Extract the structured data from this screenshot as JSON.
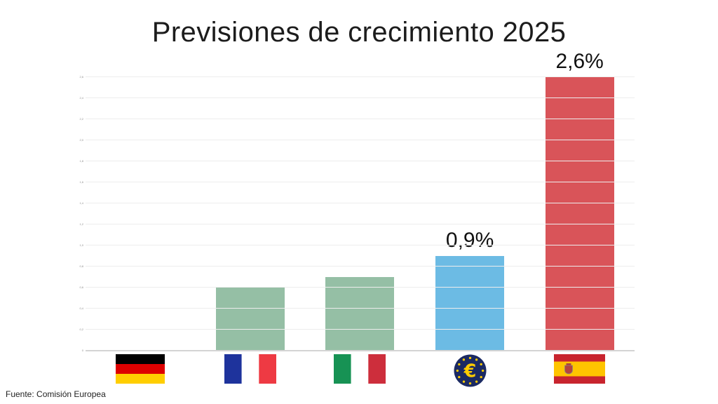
{
  "title": "Previsiones de crecimiento 2025",
  "source_note": "Fuente: Comisión Europea",
  "colors": {
    "green_bar": "#95bfa5",
    "blue_bar": "#6cbbe4",
    "red_bar": "#d95459",
    "gridline": "#ededed",
    "axis_line": "#d4d4d4",
    "title_text": "#1c1c1c",
    "euro_badge_navy": "#1b2a63",
    "euro_badge_yellow": "#ffcc00"
  },
  "chart_data": {
    "type": "bar",
    "title": "Previsiones de crecimiento 2025",
    "categories": [
      "Alemania",
      "Francia",
      "Italia",
      "Eurozona",
      "España"
    ],
    "ids": [
      "germany",
      "france",
      "italy",
      "eurozone",
      "spain"
    ],
    "values": [
      0.0,
      0.6,
      0.7,
      0.9,
      2.6
    ],
    "unit": "%",
    "value_labels": [
      "",
      "",
      "",
      "0,9%",
      "2,6%"
    ],
    "bar_colors": [
      "#95bfa5",
      "#95bfa5",
      "#95bfa5",
      "#6cbbe4",
      "#d95459"
    ],
    "icons": [
      "flag-germany-icon",
      "flag-france-icon",
      "flag-italy-icon",
      "euro-badge-icon",
      "flag-spain-icon"
    ],
    "xlabel": "",
    "ylabel": "",
    "ylim": [
      0,
      2.6
    ],
    "ytick_step": 0.2,
    "yticks": [
      "0",
      "0,2",
      "0,4",
      "0,6",
      "0,8",
      "1,0",
      "1,2",
      "1,4",
      "1,6",
      "1,8",
      "2,0",
      "2,2",
      "2,4",
      "2,6"
    ],
    "grid": true,
    "legend": false,
    "source": "Fuente: Comisión Europea"
  }
}
